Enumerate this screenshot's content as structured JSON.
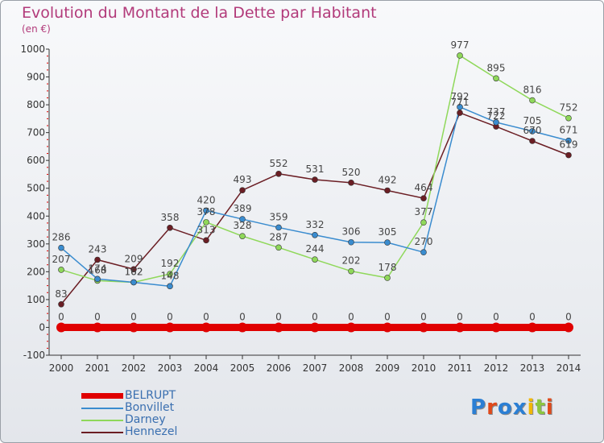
{
  "chart_data": {
    "type": "line",
    "title": "Evolution du Montant de la Dette par Habitant",
    "subtitle": "(en €)",
    "x": [
      "2000",
      "2001",
      "2002",
      "2003",
      "2004",
      "2005",
      "2006",
      "2007",
      "2008",
      "2009",
      "2010",
      "2011",
      "2012",
      "2013",
      "2014"
    ],
    "ylim": [
      -100,
      1000
    ],
    "yticks": [
      -100,
      0,
      100,
      200,
      300,
      400,
      500,
      600,
      700,
      800,
      900,
      1000
    ],
    "grid": false,
    "legend_position": "bottom-left",
    "series": [
      {
        "name": "Hennezel",
        "color": "#6b1e24",
        "values": [
          83,
          243,
          209,
          358,
          313,
          493,
          552,
          531,
          520,
          492,
          464,
          771,
          722,
          670,
          619
        ]
      },
      {
        "name": "Darney",
        "color": "#8fd85a",
        "values": [
          207,
          168,
          162,
          192,
          378,
          328,
          287,
          244,
          202,
          178,
          377,
          977,
          895,
          816,
          752
        ]
      },
      {
        "name": "Bonvillet",
        "color": "#3a8ccf",
        "values": [
          286,
          174,
          162,
          148,
          420,
          389,
          359,
          332,
          306,
          305,
          270,
          792,
          737,
          705,
          671
        ]
      },
      {
        "name": "BELRUPT",
        "color": "#e00000",
        "values": [
          0,
          0,
          0,
          0,
          0,
          0,
          0,
          0,
          0,
          0,
          0,
          0,
          0,
          0,
          0
        ]
      }
    ]
  },
  "legend": {
    "items": [
      {
        "name": "BELRUPT",
        "color": "#e00000"
      },
      {
        "name": "Bonvillet",
        "color": "#3a8ccf"
      },
      {
        "name": "Darney",
        "color": "#8fd85a"
      },
      {
        "name": "Hennezel",
        "color": "#6b1e24"
      }
    ]
  },
  "logo": {
    "text": "Proxiti"
  }
}
